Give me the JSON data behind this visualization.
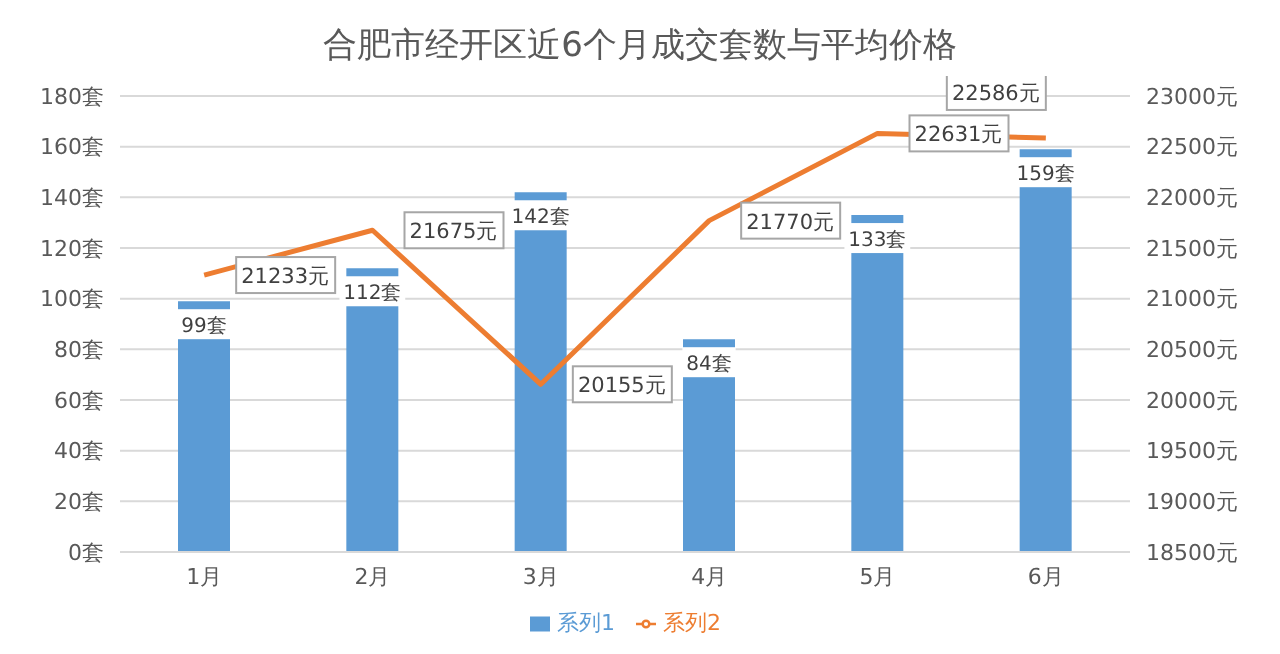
{
  "chart_data": {
    "type": "bar",
    "title": "合肥市经开区近6个月成交套数与平均价格",
    "categories": [
      "1月",
      "2月",
      "3月",
      "4月",
      "5月",
      "6月"
    ],
    "series": [
      {
        "name": "系列1",
        "type": "bar",
        "color": "#5b9bd5",
        "values": [
          99,
          112,
          142,
          84,
          133,
          159
        ],
        "value_labels": [
          "99套",
          "112套",
          "142套",
          "84套",
          "133套",
          "159套"
        ]
      },
      {
        "name": "系列2",
        "type": "line",
        "axis": "y2",
        "color": "#ed7d31",
        "values": [
          21233,
          21675,
          20155,
          21770,
          22631,
          22586
        ],
        "value_labels": [
          "21233元",
          "21675元",
          "20155元",
          "21770元",
          "22631元",
          "22586元"
        ]
      }
    ],
    "ylim": [
      0,
      180
    ],
    "yticks": [
      {
        "value": 0,
        "label": "0套"
      },
      {
        "value": 20,
        "label": "20套"
      },
      {
        "value": 40,
        "label": "40套"
      },
      {
        "value": 60,
        "label": "60套"
      },
      {
        "value": 80,
        "label": "80套"
      },
      {
        "value": 100,
        "label": "100套"
      },
      {
        "value": 120,
        "label": "120套"
      },
      {
        "value": 140,
        "label": "140套"
      },
      {
        "value": 160,
        "label": "160套"
      },
      {
        "value": 180,
        "label": "180套"
      }
    ],
    "y2lim": [
      18500,
      23000
    ],
    "y2ticks": [
      {
        "value": 18500,
        "label": "18500元"
      },
      {
        "value": 19000,
        "label": "19000元"
      },
      {
        "value": 19500,
        "label": "19500元"
      },
      {
        "value": 20000,
        "label": "20000元"
      },
      {
        "value": 20500,
        "label": "20500元"
      },
      {
        "value": 21000,
        "label": "21000元"
      },
      {
        "value": 21500,
        "label": "21500元"
      },
      {
        "value": 22000,
        "label": "22000元"
      },
      {
        "value": 22500,
        "label": "22500元"
      },
      {
        "value": 23000,
        "label": "23000元"
      }
    ],
    "grid": "y",
    "legend": "bottom",
    "marker": "none",
    "line_style": "solid"
  }
}
